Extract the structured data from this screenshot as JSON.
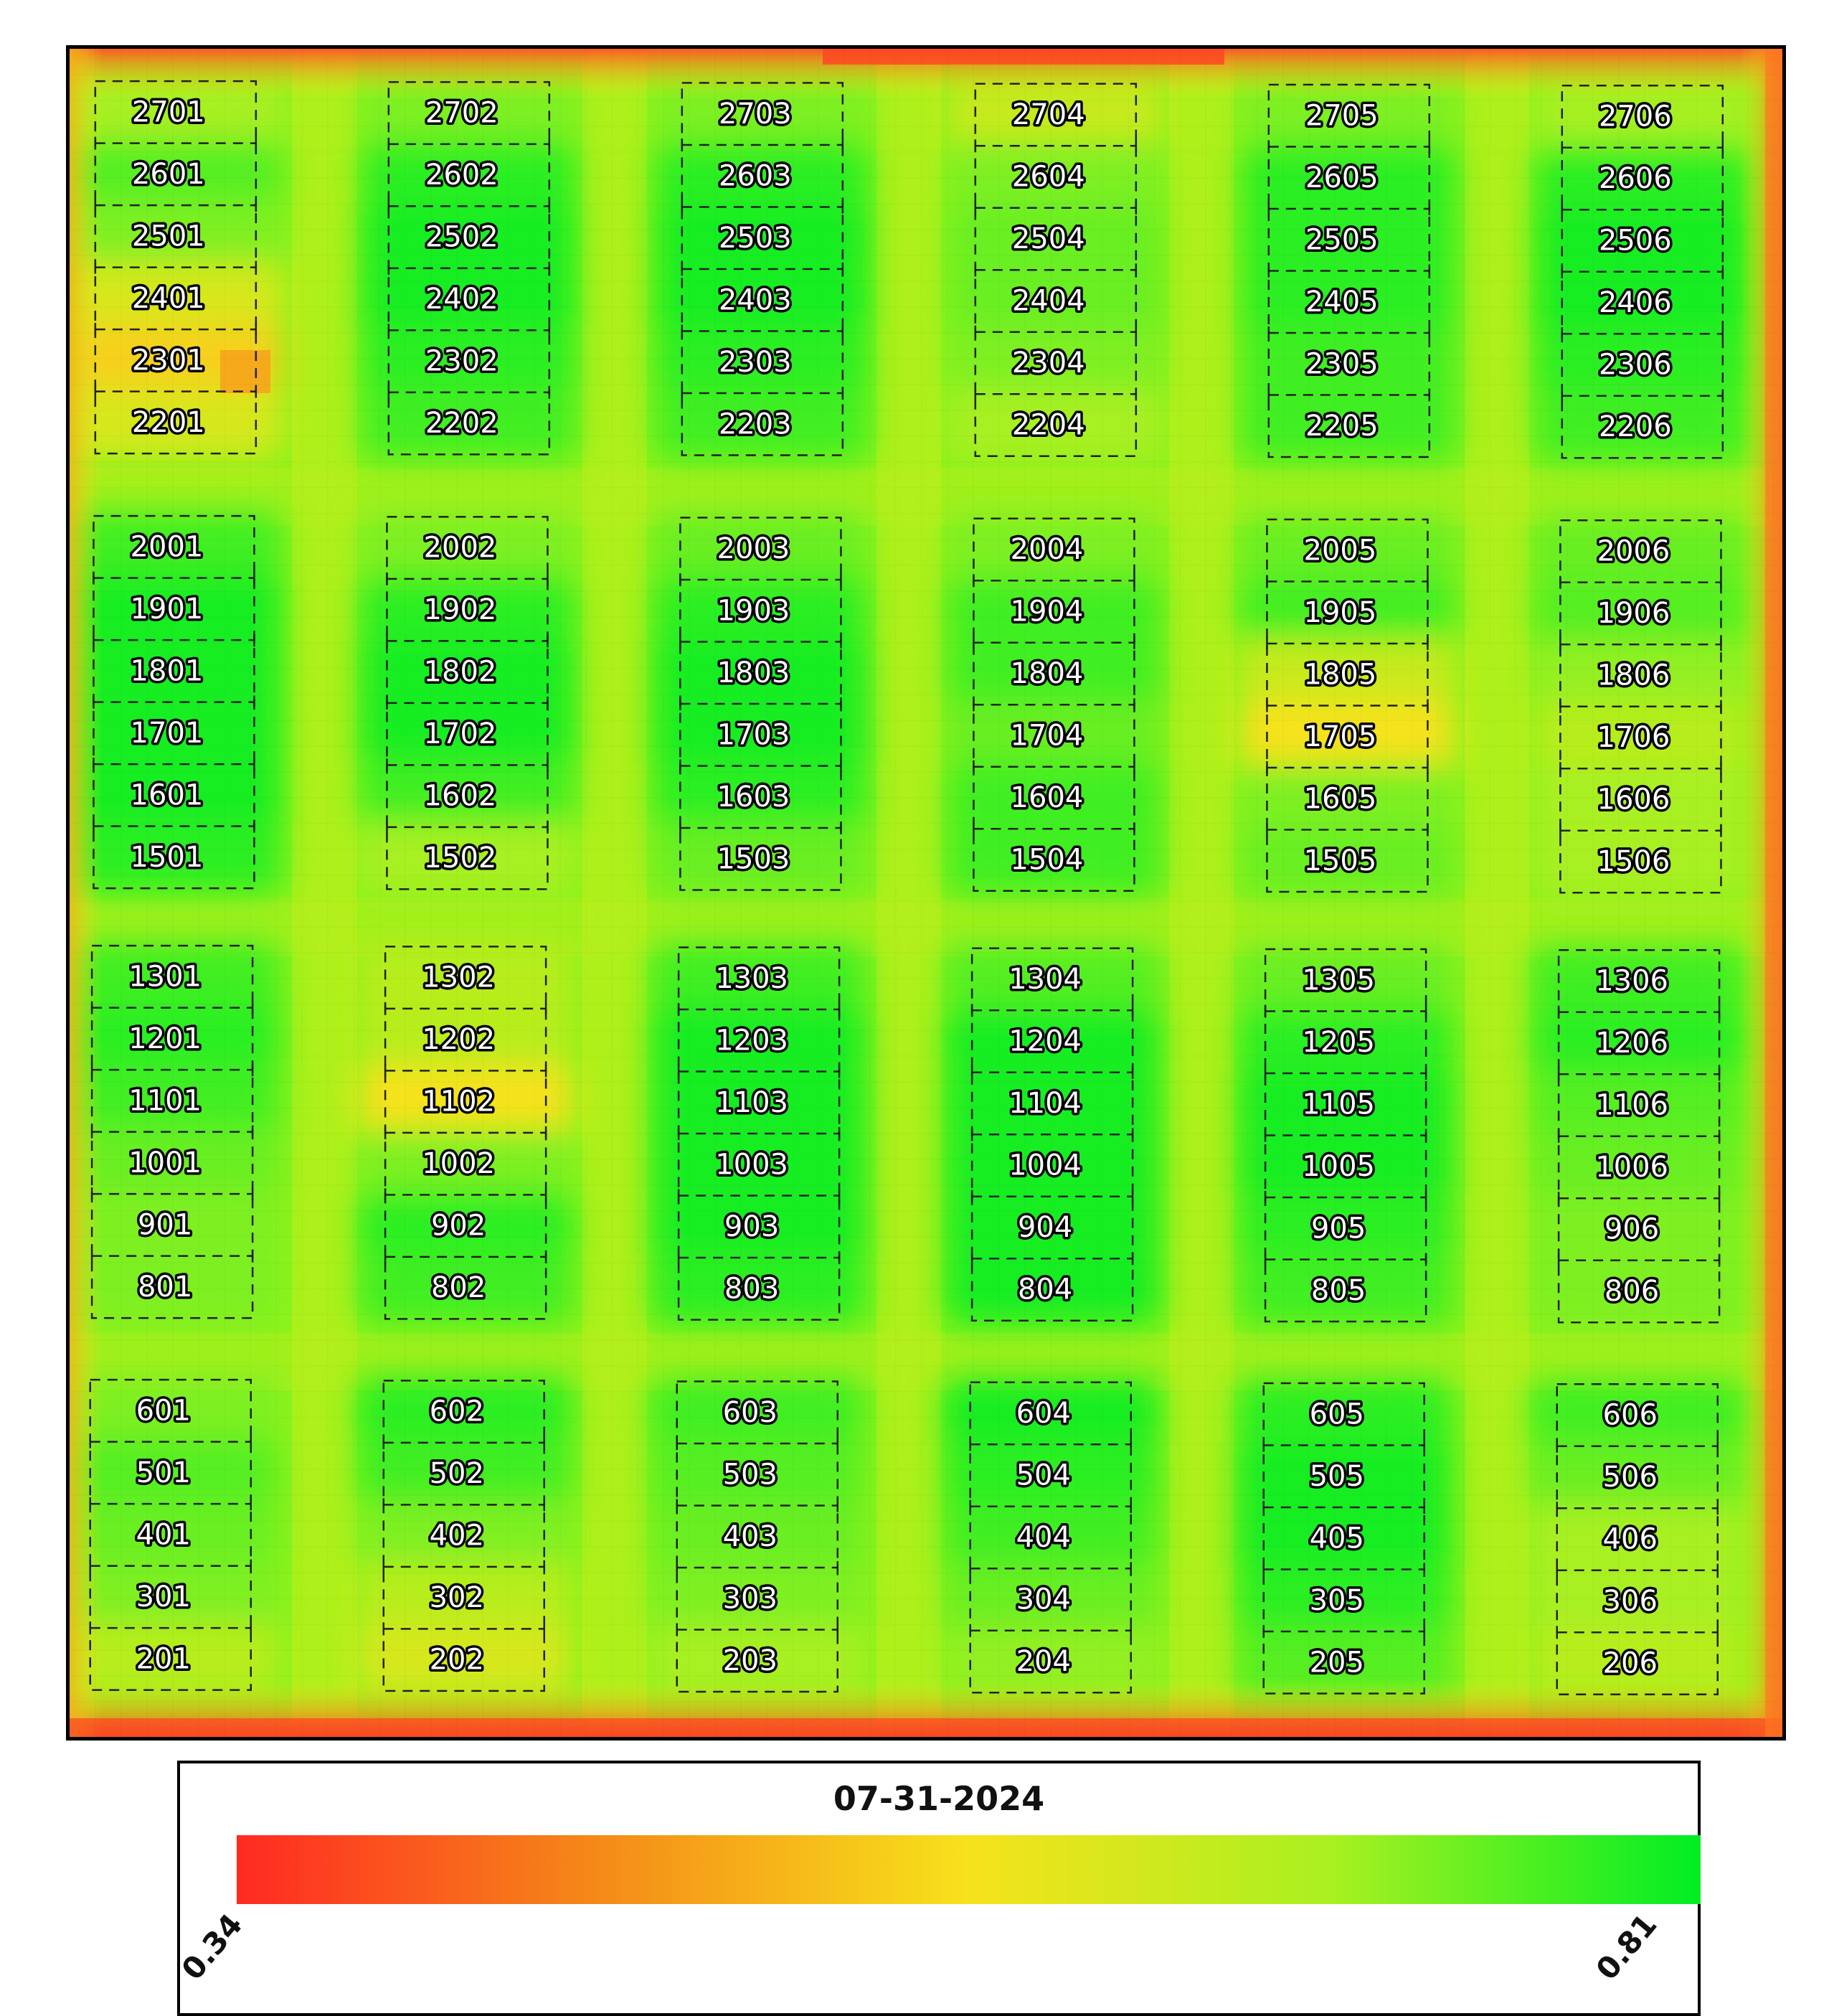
{
  "legend": {
    "date": "07-31-2024",
    "min_label": "0.34",
    "max_label": "0.81",
    "min": 0.34,
    "max": 0.81,
    "colors": [
      "#ff2a22",
      "#f58b18",
      "#f7e21b",
      "#a8f020",
      "#00ee22"
    ]
  },
  "map": {
    "columns": 6,
    "background_colors": {
      "field": "#8ef21a",
      "plot_core": "#22ee22",
      "edge": "#f7c81a",
      "hot": "#ff4422"
    },
    "blocks": [
      {
        "rows": [
          "2701",
          "2601",
          "2501",
          "2401",
          "2301",
          "2201"
        ],
        "col": 0,
        "band": 0,
        "vigor": [
          0.6,
          0.8,
          0.7,
          0.45,
          0.25,
          0.45
        ]
      },
      {
        "rows": [
          "2702",
          "2602",
          "2502",
          "2402",
          "2302",
          "2202"
        ],
        "col": 1,
        "band": 0,
        "vigor": [
          0.7,
          0.9,
          0.95,
          0.95,
          0.9,
          0.85
        ]
      },
      {
        "rows": [
          "2703",
          "2603",
          "2503",
          "2403",
          "2303",
          "2203"
        ],
        "col": 2,
        "band": 0,
        "vigor": [
          0.7,
          0.9,
          0.95,
          0.95,
          0.9,
          0.85
        ]
      },
      {
        "rows": [
          "2704",
          "2604",
          "2504",
          "2404",
          "2304",
          "2204"
        ],
        "col": 3,
        "band": 0,
        "vigor": [
          0.5,
          0.7,
          0.75,
          0.75,
          0.7,
          0.6
        ]
      },
      {
        "rows": [
          "2705",
          "2605",
          "2505",
          "2405",
          "2305",
          "2205"
        ],
        "col": 4,
        "band": 0,
        "vigor": [
          0.7,
          0.9,
          0.9,
          0.9,
          0.85,
          0.85
        ]
      },
      {
        "rows": [
          "2706",
          "2606",
          "2506",
          "2406",
          "2306",
          "2206"
        ],
        "col": 5,
        "band": 0,
        "vigor": [
          0.6,
          0.9,
          0.95,
          0.95,
          0.9,
          0.85
        ]
      },
      {
        "rows": [
          "2001",
          "1901",
          "1801",
          "1701",
          "1601",
          "1501"
        ],
        "col": 0,
        "band": 1,
        "vigor": [
          0.85,
          0.95,
          0.95,
          0.95,
          0.95,
          0.9
        ]
      },
      {
        "rows": [
          "2002",
          "1902",
          "1802",
          "1702",
          "1602",
          "1502"
        ],
        "col": 1,
        "band": 1,
        "vigor": [
          0.7,
          0.9,
          0.95,
          0.95,
          0.85,
          0.6
        ]
      },
      {
        "rows": [
          "2003",
          "1903",
          "1803",
          "1703",
          "1603",
          "1503"
        ],
        "col": 2,
        "band": 1,
        "vigor": [
          0.75,
          0.9,
          0.95,
          0.95,
          0.9,
          0.75
        ]
      },
      {
        "rows": [
          "2004",
          "1904",
          "1804",
          "1704",
          "1604",
          "1504"
        ],
        "col": 3,
        "band": 1,
        "vigor": [
          0.7,
          0.85,
          0.85,
          0.75,
          0.85,
          0.85
        ]
      },
      {
        "rows": [
          "2005",
          "1905",
          "1805",
          "1705",
          "1605",
          "1505"
        ],
        "col": 4,
        "band": 1,
        "vigor": [
          0.75,
          0.85,
          0.5,
          0.35,
          0.7,
          0.75
        ]
      },
      {
        "rows": [
          "2006",
          "1906",
          "1806",
          "1706",
          "1606",
          "1506"
        ],
        "col": 5,
        "band": 1,
        "vigor": [
          0.75,
          0.8,
          0.65,
          0.55,
          0.6,
          0.6
        ]
      },
      {
        "rows": [
          "1301",
          "1201",
          "1101",
          "1001",
          "901",
          "801"
        ],
        "col": 0,
        "band": 2,
        "vigor": [
          0.85,
          0.9,
          0.85,
          0.75,
          0.7,
          0.7
        ]
      },
      {
        "rows": [
          "1302",
          "1202",
          "1102",
          "1002",
          "902",
          "802"
        ],
        "col": 1,
        "band": 2,
        "vigor": [
          0.55,
          0.55,
          0.35,
          0.7,
          0.9,
          0.85
        ]
      },
      {
        "rows": [
          "1303",
          "1203",
          "1103",
          "1003",
          "903",
          "803"
        ],
        "col": 2,
        "band": 2,
        "vigor": [
          0.85,
          0.95,
          0.95,
          0.95,
          0.95,
          0.9
        ]
      },
      {
        "rows": [
          "1304",
          "1204",
          "1104",
          "1004",
          "904",
          "804"
        ],
        "col": 3,
        "band": 2,
        "vigor": [
          0.8,
          0.95,
          0.95,
          0.95,
          0.95,
          0.95
        ]
      },
      {
        "rows": [
          "1305",
          "1205",
          "1105",
          "1005",
          "905",
          "805"
        ],
        "col": 4,
        "band": 2,
        "vigor": [
          0.75,
          0.9,
          0.95,
          0.95,
          0.9,
          0.85
        ]
      },
      {
        "rows": [
          "1306",
          "1206",
          "1106",
          "1006",
          "906",
          "806"
        ],
        "col": 5,
        "band": 2,
        "vigor": [
          0.85,
          0.9,
          0.8,
          0.75,
          0.7,
          0.7
        ]
      },
      {
        "rows": [
          "601",
          "501",
          "401",
          "301",
          "201"
        ],
        "col": 0,
        "band": 3,
        "vigor": [
          0.7,
          0.8,
          0.75,
          0.7,
          0.55
        ]
      },
      {
        "rows": [
          "602",
          "502",
          "402",
          "302",
          "202"
        ],
        "col": 1,
        "band": 3,
        "vigor": [
          0.9,
          0.85,
          0.7,
          0.55,
          0.45
        ]
      },
      {
        "rows": [
          "603",
          "503",
          "403",
          "303",
          "203"
        ],
        "col": 2,
        "band": 3,
        "vigor": [
          0.85,
          0.8,
          0.75,
          0.7,
          0.6
        ]
      },
      {
        "rows": [
          "604",
          "504",
          "404",
          "304",
          "204"
        ],
        "col": 3,
        "band": 3,
        "vigor": [
          0.95,
          0.9,
          0.85,
          0.75,
          0.65
        ]
      },
      {
        "rows": [
          "605",
          "505",
          "405",
          "305",
          "205"
        ],
        "col": 4,
        "band": 3,
        "vigor": [
          0.9,
          0.95,
          0.95,
          0.9,
          0.8
        ]
      },
      {
        "rows": [
          "606",
          "506",
          "406",
          "306",
          "206"
        ],
        "col": 5,
        "band": 3,
        "vigor": [
          0.85,
          0.75,
          0.6,
          0.6,
          0.55
        ]
      }
    ]
  }
}
